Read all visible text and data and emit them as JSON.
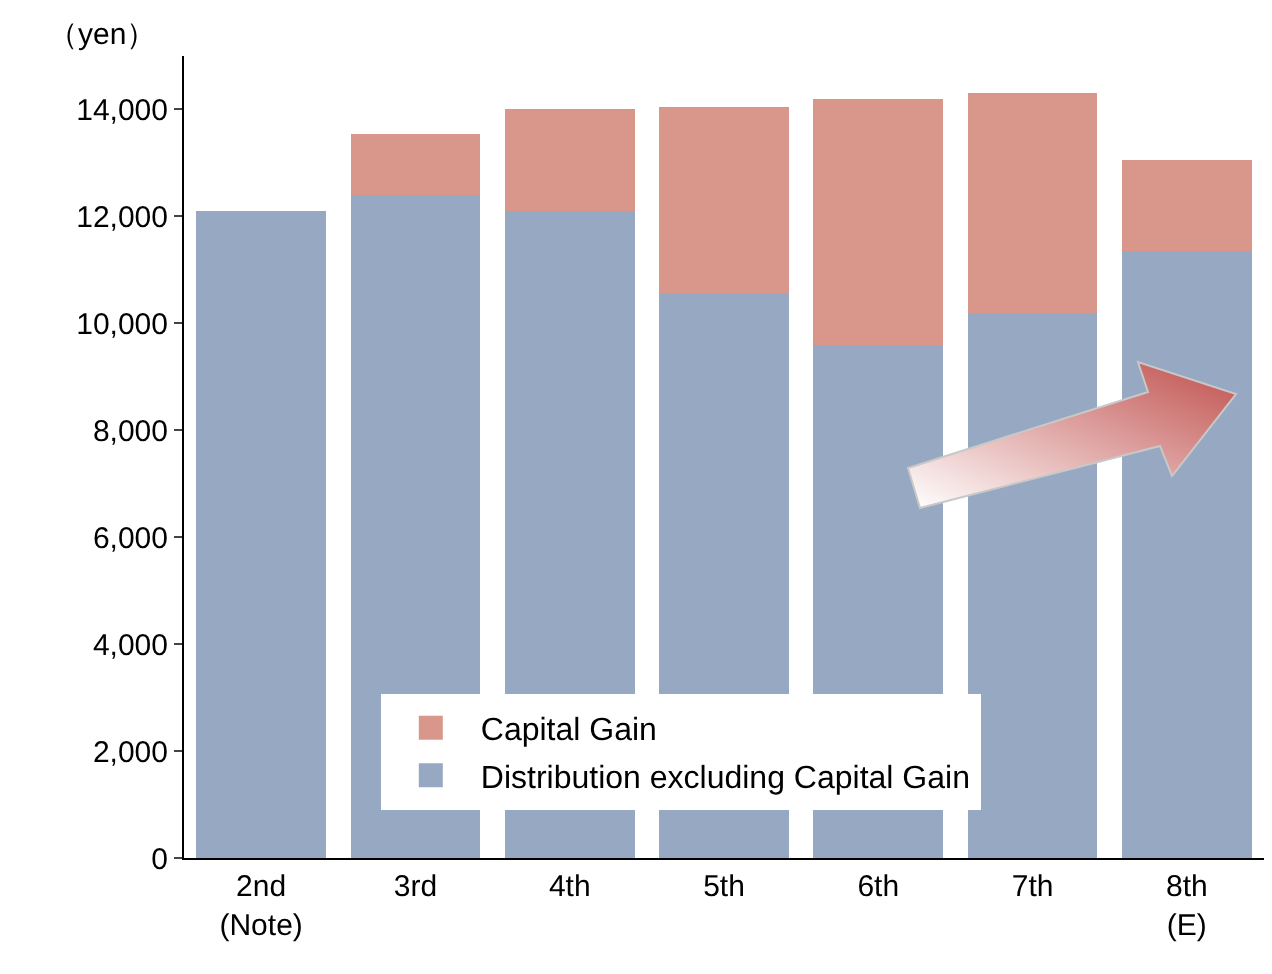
{
  "chart_data": {
    "type": "bar",
    "stacked": true,
    "ylabel": "（yen）",
    "categories": [
      "2nd\n(Note)",
      "3rd",
      "4th",
      "5th",
      "6th",
      "7th",
      "8th\n(E)"
    ],
    "series": [
      {
        "name": "Distribution excluding Capital Gain",
        "color": "#97a8c2",
        "values": [
          12100,
          12400,
          12100,
          10550,
          9600,
          10200,
          11350
        ]
      },
      {
        "name": "Capital Gain",
        "color": "#d9968a",
        "values": [
          null,
          1150,
          1900,
          3500,
          4600,
          4100,
          1700
        ]
      }
    ],
    "ylim": [
      0,
      15000
    ],
    "yticks": [
      {
        "value": 0,
        "label": "0"
      },
      {
        "value": 2000,
        "label": "2,000"
      },
      {
        "value": 4000,
        "label": "4,000"
      },
      {
        "value": 6000,
        "label": "6,000"
      },
      {
        "value": 8000,
        "label": "8,000"
      },
      {
        "value": 10000,
        "label": "10,000"
      },
      {
        "value": 12000,
        "label": "12,000"
      },
      {
        "value": 14000,
        "label": "14,000"
      }
    ],
    "grid": false,
    "legend": "bottom"
  }
}
